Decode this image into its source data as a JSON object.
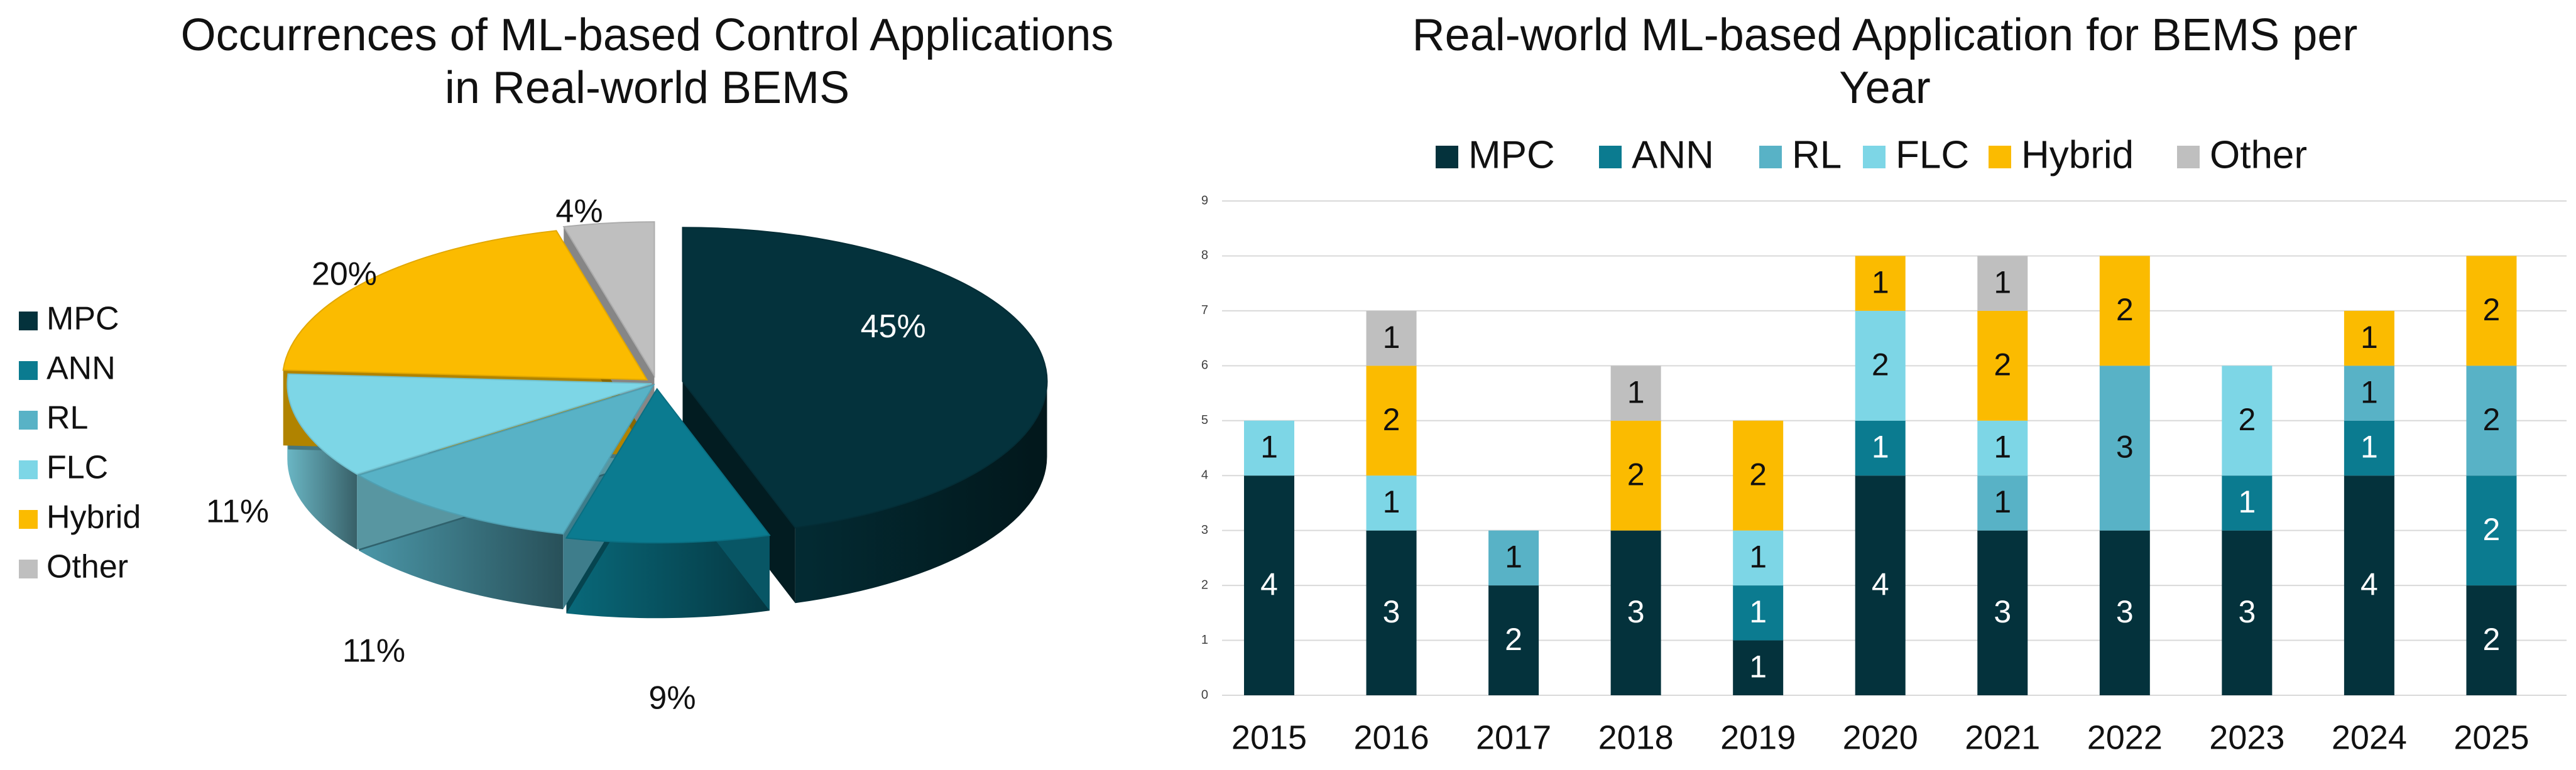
{
  "colors": {
    "MPC": "#04323c",
    "ANN": "#0b7b90",
    "RL": "#58b2c6",
    "FLC": "#7dd6e6",
    "Hybrid": "#fbbb00",
    "Other": "#bfbfbf"
  },
  "chart_data": [
    {
      "type": "pie",
      "title": "Occurrences of ML-based Control Applications in Real-world BEMS",
      "title_lines": [
        "Occurrences of ML-based Control Applications",
        "in Real-world BEMS"
      ],
      "categories": [
        "MPC",
        "ANN",
        "RL",
        "FLC",
        "Hybrid",
        "Other"
      ],
      "values": [
        45,
        9,
        11,
        11,
        20,
        4
      ],
      "labels": [
        "45%",
        "9%",
        "11%",
        "11%",
        "20%",
        "4%"
      ],
      "legend_position": "left",
      "style": "3d-exploded"
    },
    {
      "type": "bar",
      "stacked": true,
      "title": "Real-world ML-based Application for BEMS per Year",
      "title_lines": [
        "Real-world ML-based Application for BEMS per",
        "Year"
      ],
      "categories": [
        "2015",
        "2016",
        "2017",
        "2018",
        "2019",
        "2020",
        "2021",
        "2022",
        "2023",
        "2024",
        "2025"
      ],
      "series": [
        {
          "name": "MPC",
          "values": [
            4,
            3,
            2,
            3,
            1,
            4,
            3,
            3,
            3,
            4,
            2
          ]
        },
        {
          "name": "ANN",
          "values": [
            0,
            0,
            0,
            0,
            1,
            1,
            0,
            0,
            1,
            1,
            2
          ]
        },
        {
          "name": "RL",
          "values": [
            0,
            0,
            1,
            0,
            0,
            0,
            1,
            3,
            0,
            1,
            2
          ]
        },
        {
          "name": "FLC",
          "values": [
            1,
            1,
            0,
            0,
            1,
            2,
            1,
            0,
            2,
            0,
            0
          ]
        },
        {
          "name": "Hybrid",
          "values": [
            0,
            2,
            0,
            2,
            2,
            1,
            2,
            2,
            0,
            1,
            2
          ]
        },
        {
          "name": "Other",
          "values": [
            0,
            1,
            0,
            1,
            0,
            0,
            1,
            0,
            0,
            0,
            0
          ]
        }
      ],
      "ylim": [
        0,
        9
      ],
      "yticks": [
        0,
        1,
        2,
        3,
        4,
        5,
        6,
        7,
        8,
        9
      ],
      "grid": true,
      "legend_position": "top"
    }
  ]
}
